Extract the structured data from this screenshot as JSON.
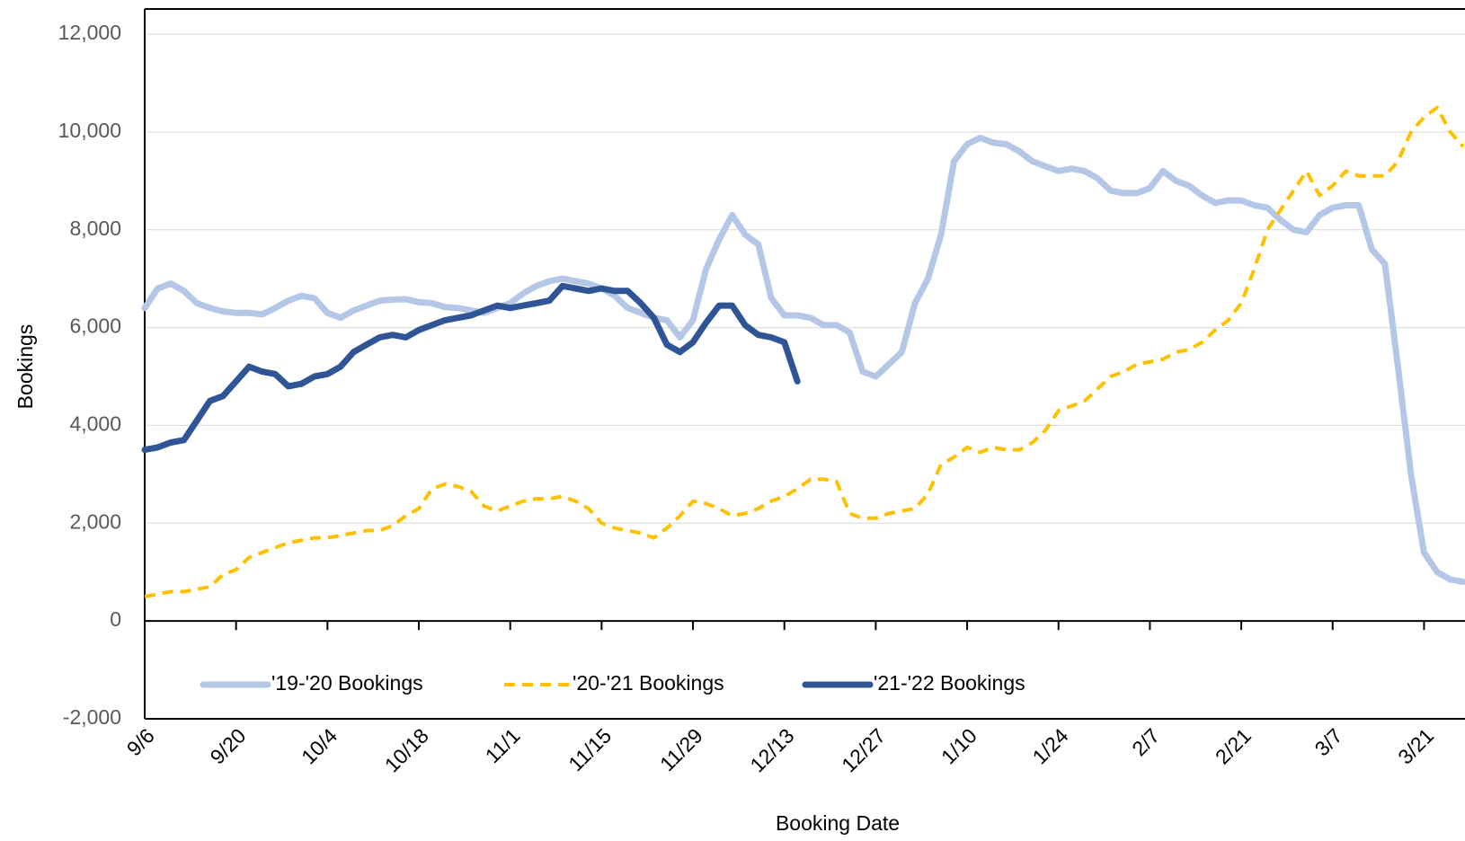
{
  "chart_data": {
    "type": "line",
    "x_label": "Booking Date",
    "y_label": "Bookings",
    "categories": [
      "9/6",
      null,
      null,
      null,
      null,
      null,
      null,
      "9/20",
      null,
      null,
      null,
      null,
      null,
      null,
      "10/4",
      null,
      null,
      null,
      null,
      null,
      null,
      "10/18",
      null,
      null,
      null,
      null,
      null,
      null,
      "11/1",
      null,
      null,
      null,
      null,
      null,
      null,
      "11/15",
      null,
      null,
      null,
      null,
      null,
      null,
      "11/29",
      null,
      null,
      null,
      null,
      null,
      null,
      "12/13",
      null,
      null,
      null,
      null,
      null,
      null,
      "12/27",
      null,
      null,
      null,
      null,
      null,
      null,
      "1/10",
      null,
      null,
      null,
      null,
      null,
      null,
      "1/24",
      null,
      null,
      null,
      null,
      null,
      null,
      "2/7",
      null,
      null,
      null,
      null,
      null,
      null,
      "2/21",
      null,
      null,
      null,
      null,
      null,
      null,
      "3/7",
      null,
      null,
      null,
      null,
      null,
      null,
      "3/21",
      null,
      null,
      null
    ],
    "series": [
      {
        "name": "'19-'20 Bookings",
        "color": "#b4c7e7",
        "dash": false,
        "values": [
          6400,
          6800,
          6900,
          6750,
          6500,
          6400,
          6330,
          6300,
          6300,
          6270,
          6400,
          6550,
          6650,
          6600,
          6300,
          6200,
          6350,
          6450,
          6550,
          6570,
          6580,
          6520,
          6500,
          6420,
          6400,
          6350,
          6300,
          6400,
          6500,
          6700,
          6850,
          6950,
          7000,
          6950,
          6900,
          6800,
          6650,
          6400,
          6300,
          6200,
          6150,
          5800,
          6150,
          7200,
          7800,
          8300,
          7900,
          7700,
          6600,
          6250,
          6250,
          6200,
          6050,
          6050,
          5900,
          5100,
          5000,
          5250,
          5500,
          6500,
          7000,
          7900,
          9400,
          9750,
          9880,
          9780,
          9750,
          9600,
          9400,
          9300,
          9200,
          9250,
          9200,
          9050,
          8800,
          8750,
          8750,
          8850,
          9200,
          9000,
          8900,
          8700,
          8550,
          8600,
          8600,
          8500,
          8450,
          8200,
          8000,
          7950,
          8300,
          8450,
          8500,
          8500,
          7600,
          7300,
          5200,
          3000,
          1400,
          1000,
          850,
          800
        ]
      },
      {
        "name": "'20-'21 Bookings",
        "color": "#ffc000",
        "dash": true,
        "values": [
          500,
          550,
          600,
          600,
          650,
          700,
          950,
          1050,
          1300,
          1400,
          1500,
          1600,
          1650,
          1700,
          1700,
          1750,
          1800,
          1850,
          1850,
          1950,
          2150,
          2300,
          2700,
          2800,
          2750,
          2650,
          2350,
          2250,
          2350,
          2450,
          2500,
          2500,
          2550,
          2450,
          2300,
          2000,
          1900,
          1850,
          1800,
          1700,
          1900,
          2150,
          2450,
          2400,
          2300,
          2150,
          2200,
          2300,
          2450,
          2550,
          2700,
          2900,
          2900,
          2850,
          2200,
          2100,
          2100,
          2200,
          2250,
          2300,
          2600,
          3200,
          3350,
          3550,
          3450,
          3550,
          3500,
          3500,
          3650,
          3900,
          4300,
          4400,
          4500,
          4750,
          5000,
          5100,
          5250,
          5300,
          5350,
          5500,
          5550,
          5700,
          5950,
          6150,
          6500,
          7200,
          8000,
          8400,
          8800,
          9200,
          8700,
          8900,
          9200,
          9100,
          9100,
          9100,
          9400,
          10000,
          10300,
          10500,
          10000,
          9700
        ]
      },
      {
        "name": "'21-'22 Bookings",
        "color": "#2f5597",
        "dash": false,
        "values": [
          3500,
          3550,
          3650,
          3700,
          4100,
          4500,
          4600,
          4900,
          5200,
          5100,
          5050,
          4800,
          4850,
          5000,
          5050,
          5200,
          5500,
          5650,
          5800,
          5850,
          5800,
          5950,
          6050,
          6150,
          6200,
          6250,
          6350,
          6450,
          6400,
          6450,
          6500,
          6550,
          6850,
          6800,
          6750,
          6800,
          6750,
          6750,
          6500,
          6200,
          5650,
          5500,
          5700,
          6100,
          6450,
          6450,
          6050,
          5850,
          5800,
          5700,
          4900,
          null,
          null,
          null,
          null,
          null,
          null,
          null,
          null,
          null,
          null,
          null,
          null,
          null,
          null,
          null,
          null,
          null,
          null,
          null,
          null,
          null,
          null,
          null,
          null,
          null,
          null,
          null,
          null,
          null,
          null,
          null,
          null,
          null,
          null,
          null,
          null,
          null,
          null,
          null,
          null,
          null,
          null,
          null,
          null,
          null,
          null,
          null,
          null,
          null,
          null,
          null
        ]
      }
    ],
    "ylim": [
      -2000,
      12000
    ],
    "yticks": [
      {
        "value": -2000,
        "label": "-2,000"
      },
      0,
      {
        "value": 2000,
        "label": "2,000"
      },
      {
        "value": 4000,
        "label": "4,000"
      },
      {
        "value": 6000,
        "label": "6,000"
      },
      {
        "value": 8000,
        "label": "8,000"
      },
      {
        "value": 10000,
        "label": "10,000"
      },
      {
        "value": 12000,
        "label": "12,000"
      }
    ],
    "grid": true,
    "legend": "bottom"
  }
}
